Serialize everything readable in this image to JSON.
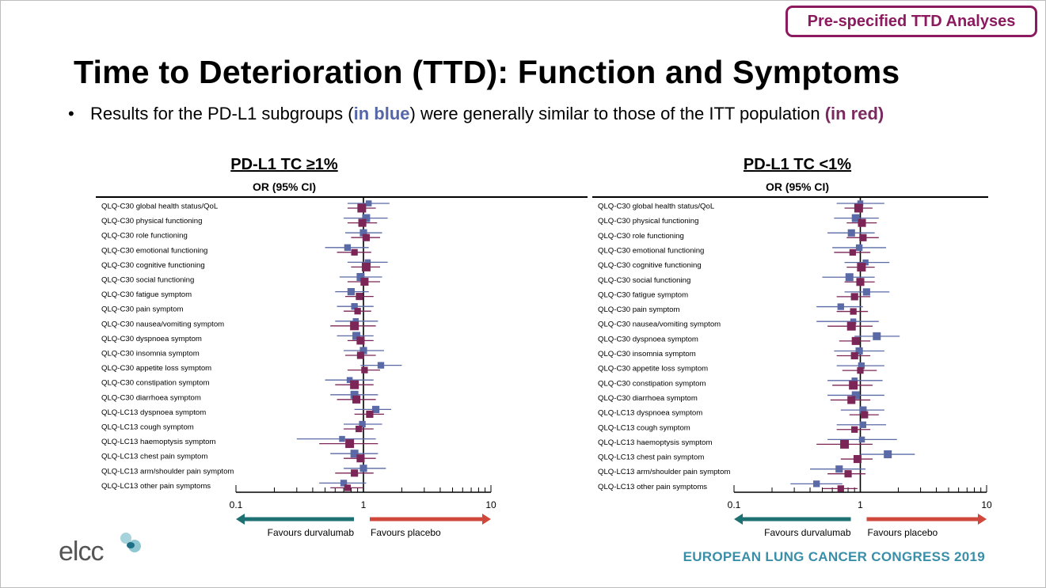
{
  "header": {
    "badge": "Pre-specified TTD Analyses",
    "title": "Time to Deterioration (TTD): Function and Symptoms",
    "bullet_pre": "Results for the PD-L1 subgroups (",
    "bullet_blue": "in blue",
    "bullet_mid": ") were generally similar to those of the ITT population ",
    "bullet_red": "(in red)"
  },
  "colors": {
    "blue": "#5a6aa6",
    "red": "#7b2656",
    "arrow_left": "#1e7173",
    "arrow_right": "#d0483c",
    "brand_purple": "#8b1a5e",
    "congress_teal": "#3a8fa8"
  },
  "footer": {
    "logo": "elcc",
    "congress": "EUROPEAN LUNG CANCER CONGRESS 2019"
  },
  "chart_data": [
    {
      "type": "forest",
      "title": "PD-L1 TC ≥1%",
      "subtitle": "OR (95% CI)",
      "xscale": "log",
      "xlim": [
        0.1,
        10
      ],
      "xticks": [
        "0.1",
        "1",
        "10"
      ],
      "arrow_left_label": "Favours durvalumab",
      "arrow_right_label": "Favours placebo",
      "categories": [
        "QLQ-C30 global health status/QoL",
        "QLQ-C30 physical functioning",
        "QLQ-C30 role functioning",
        "QLQ-C30 emotional functioning",
        "QLQ-C30 cognitive functioning",
        "QLQ-C30 social functioning",
        "QLQ-C30 fatigue symptom",
        "QLQ-C30 pain symptom",
        "QLQ-C30 nausea/vomiting symptom",
        "QLQ-C30 dyspnoea symptom",
        "QLQ-C30 insomnia symptom",
        "QLQ-C30 appetite loss symptom",
        "QLQ-C30 constipation symptom",
        "QLQ-C30 diarrhoea symptom",
        "QLQ-LC13 dyspnoea symptom",
        "QLQ-LC13 cough symptom",
        "QLQ-LC13 haemoptysis symptom",
        "QLQ-LC13 chest pain symptom",
        "QLQ-LC13 arm/shoulder pain symptom",
        "QLQ-LC13 other pain symptoms"
      ],
      "series": [
        {
          "color": "blue",
          "or": [
            1.1,
            1.05,
            1.0,
            0.75,
            1.08,
            0.95,
            0.8,
            0.85,
            0.87,
            0.88,
            1.0,
            1.37,
            0.78,
            0.85,
            1.25,
            0.98,
            0.68,
            0.85,
            1.0,
            0.7
          ],
          "lo": [
            0.75,
            0.7,
            0.72,
            0.5,
            0.75,
            0.65,
            0.6,
            0.62,
            0.6,
            0.62,
            0.7,
            0.95,
            0.5,
            0.55,
            0.85,
            0.7,
            0.3,
            0.55,
            0.7,
            0.45
          ],
          "hi": [
            1.6,
            1.55,
            1.4,
            1.1,
            1.55,
            1.4,
            1.1,
            1.2,
            1.3,
            1.2,
            1.45,
            2.0,
            1.2,
            1.3,
            1.65,
            1.4,
            1.25,
            1.3,
            1.5,
            1.05
          ]
        },
        {
          "color": "red",
          "or": [
            0.97,
            0.98,
            1.05,
            0.85,
            1.05,
            1.02,
            0.93,
            0.9,
            0.85,
            0.95,
            0.95,
            1.02,
            0.85,
            0.88,
            1.12,
            0.92,
            0.78,
            0.95,
            0.85,
            0.75
          ],
          "lo": [
            0.75,
            0.75,
            0.8,
            0.62,
            0.8,
            0.75,
            0.72,
            0.7,
            0.55,
            0.75,
            0.72,
            0.75,
            0.6,
            0.62,
            0.85,
            0.7,
            0.45,
            0.7,
            0.6,
            0.55
          ],
          "hi": [
            1.25,
            1.28,
            1.35,
            1.15,
            1.35,
            1.35,
            1.2,
            1.15,
            1.25,
            1.2,
            1.25,
            1.35,
            1.2,
            1.25,
            1.45,
            1.2,
            1.3,
            1.25,
            1.2,
            1.0
          ]
        }
      ]
    },
    {
      "type": "forest",
      "title": "PD-L1 TC <1%",
      "subtitle": "OR (95% CI)",
      "xscale": "log",
      "xlim": [
        0.1,
        10
      ],
      "xticks": [
        "0.1",
        "1",
        "10"
      ],
      "arrow_left_label": "Favours durvalumab",
      "arrow_right_label": "Favours placebo",
      "categories": [
        "QLQ-C30 global health status/QoL",
        "QLQ-C30 physical functioning",
        "QLQ-C30 role functioning",
        "QLQ-C30 emotional functioning",
        "QLQ-C30 cognitive functioning",
        "QLQ-C30 social functioning",
        "QLQ-C30 fatigue symptom",
        "QLQ-C30 pain symptom",
        "QLQ-C30 nausea/vomiting symptom",
        "QLQ-C30 dyspnoea symptom",
        "QLQ-C30 insomnia symptom",
        "QLQ-C30 appetite loss symptom",
        "QLQ-C30 constipation symptom",
        "QLQ-C30 diarrhoea symptom",
        "QLQ-LC13 dyspnoea symptom",
        "QLQ-LC13 cough symptom",
        "QLQ-LC13 haemoptysis symptom",
        "QLQ-LC13 chest pain symptom",
        "QLQ-LC13 arm/shoulder pain symptom",
        "QLQ-LC13 other pain symptoms"
      ],
      "series": [
        {
          "color": "blue",
          "or": [
            1.0,
            0.92,
            0.85,
            0.98,
            1.1,
            0.82,
            1.12,
            0.7,
            0.88,
            1.35,
            0.98,
            1.02,
            0.9,
            0.92,
            1.05,
            1.05,
            1.03,
            1.65,
            0.68,
            0.45
          ],
          "lo": [
            0.65,
            0.62,
            0.55,
            0.6,
            0.75,
            0.5,
            0.75,
            0.45,
            0.45,
            0.9,
            0.62,
            0.65,
            0.55,
            0.55,
            0.7,
            0.65,
            0.55,
            1.0,
            0.4,
            0.28
          ],
          "hi": [
            1.55,
            1.4,
            1.3,
            1.6,
            1.7,
            1.3,
            1.7,
            1.05,
            1.4,
            2.05,
            1.55,
            1.55,
            1.5,
            1.55,
            1.55,
            1.6,
            1.95,
            2.7,
            1.1,
            0.72
          ]
        },
        {
          "color": "red",
          "or": [
            0.97,
            1.03,
            1.05,
            0.87,
            1.02,
            1.0,
            0.9,
            0.88,
            0.85,
            0.92,
            0.9,
            1.0,
            0.88,
            0.85,
            1.08,
            0.9,
            0.75,
            0.95,
            0.8,
            0.7
          ],
          "lo": [
            0.75,
            0.78,
            0.78,
            0.62,
            0.78,
            0.75,
            0.65,
            0.65,
            0.55,
            0.68,
            0.65,
            0.72,
            0.6,
            0.58,
            0.82,
            0.65,
            0.45,
            0.7,
            0.55,
            0.5
          ],
          "hi": [
            1.25,
            1.35,
            1.4,
            1.2,
            1.3,
            1.3,
            1.2,
            1.15,
            1.25,
            1.2,
            1.2,
            1.35,
            1.25,
            1.2,
            1.4,
            1.2,
            1.25,
            1.25,
            1.1,
            0.95
          ]
        }
      ]
    }
  ]
}
